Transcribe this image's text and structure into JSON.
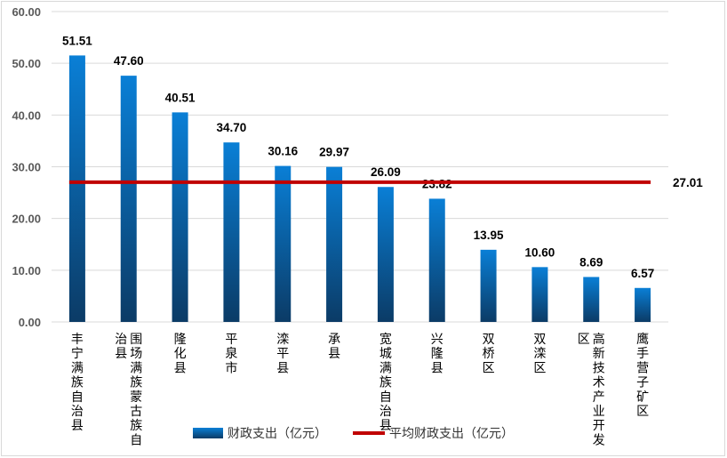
{
  "chart_data": {
    "type": "bar",
    "categories": [
      "丰宁满族自治县",
      "围场满族蒙古族自治县",
      "隆化县",
      "平泉市",
      "滦平县",
      "承县",
      "宽城满族自治县",
      "兴隆县",
      "双桥区",
      "双滦区",
      "高新技术产业开发区",
      "鹰手营子矿区"
    ],
    "category_lines": [
      [
        "丰宁满族自治县"
      ],
      [
        "围场满族蒙古族自",
        "治县"
      ],
      [
        "隆化县"
      ],
      [
        "平泉市"
      ],
      [
        "滦平县"
      ],
      [
        "承县"
      ],
      [
        "宽城满族自治县"
      ],
      [
        "兴隆县"
      ],
      [
        "双桥区"
      ],
      [
        "双滦区"
      ],
      [
        "高新技术产业开发",
        "区"
      ],
      [
        "鹰手营子矿区"
      ]
    ],
    "series": [
      {
        "name": "财政支出（亿元）",
        "type": "bar",
        "values": [
          51.51,
          47.6,
          40.51,
          34.7,
          30.16,
          29.97,
          26.09,
          23.82,
          13.95,
          10.6,
          8.69,
          6.57
        ],
        "labels": [
          "51.51",
          "47.60",
          "40.51",
          "34.70",
          "30.16",
          "29.97",
          "26.09",
          "23.82",
          "13.95",
          "10.60",
          "8.69",
          "6.57"
        ]
      },
      {
        "name": "平均财政支出（亿元）",
        "type": "line",
        "value": 27.01,
        "label": "27.01"
      }
    ],
    "yticks": [
      "0.00",
      "10.00",
      "20.00",
      "30.00",
      "40.00",
      "50.00",
      "60.00"
    ],
    "ylim": [
      0,
      60
    ],
    "grid": true,
    "legend": "bottom",
    "colors": {
      "bar_top": "#0a7fd6",
      "bar_bottom": "#0b3b66",
      "average_line": "#c00000",
      "grid": "#d9d9d9"
    }
  }
}
